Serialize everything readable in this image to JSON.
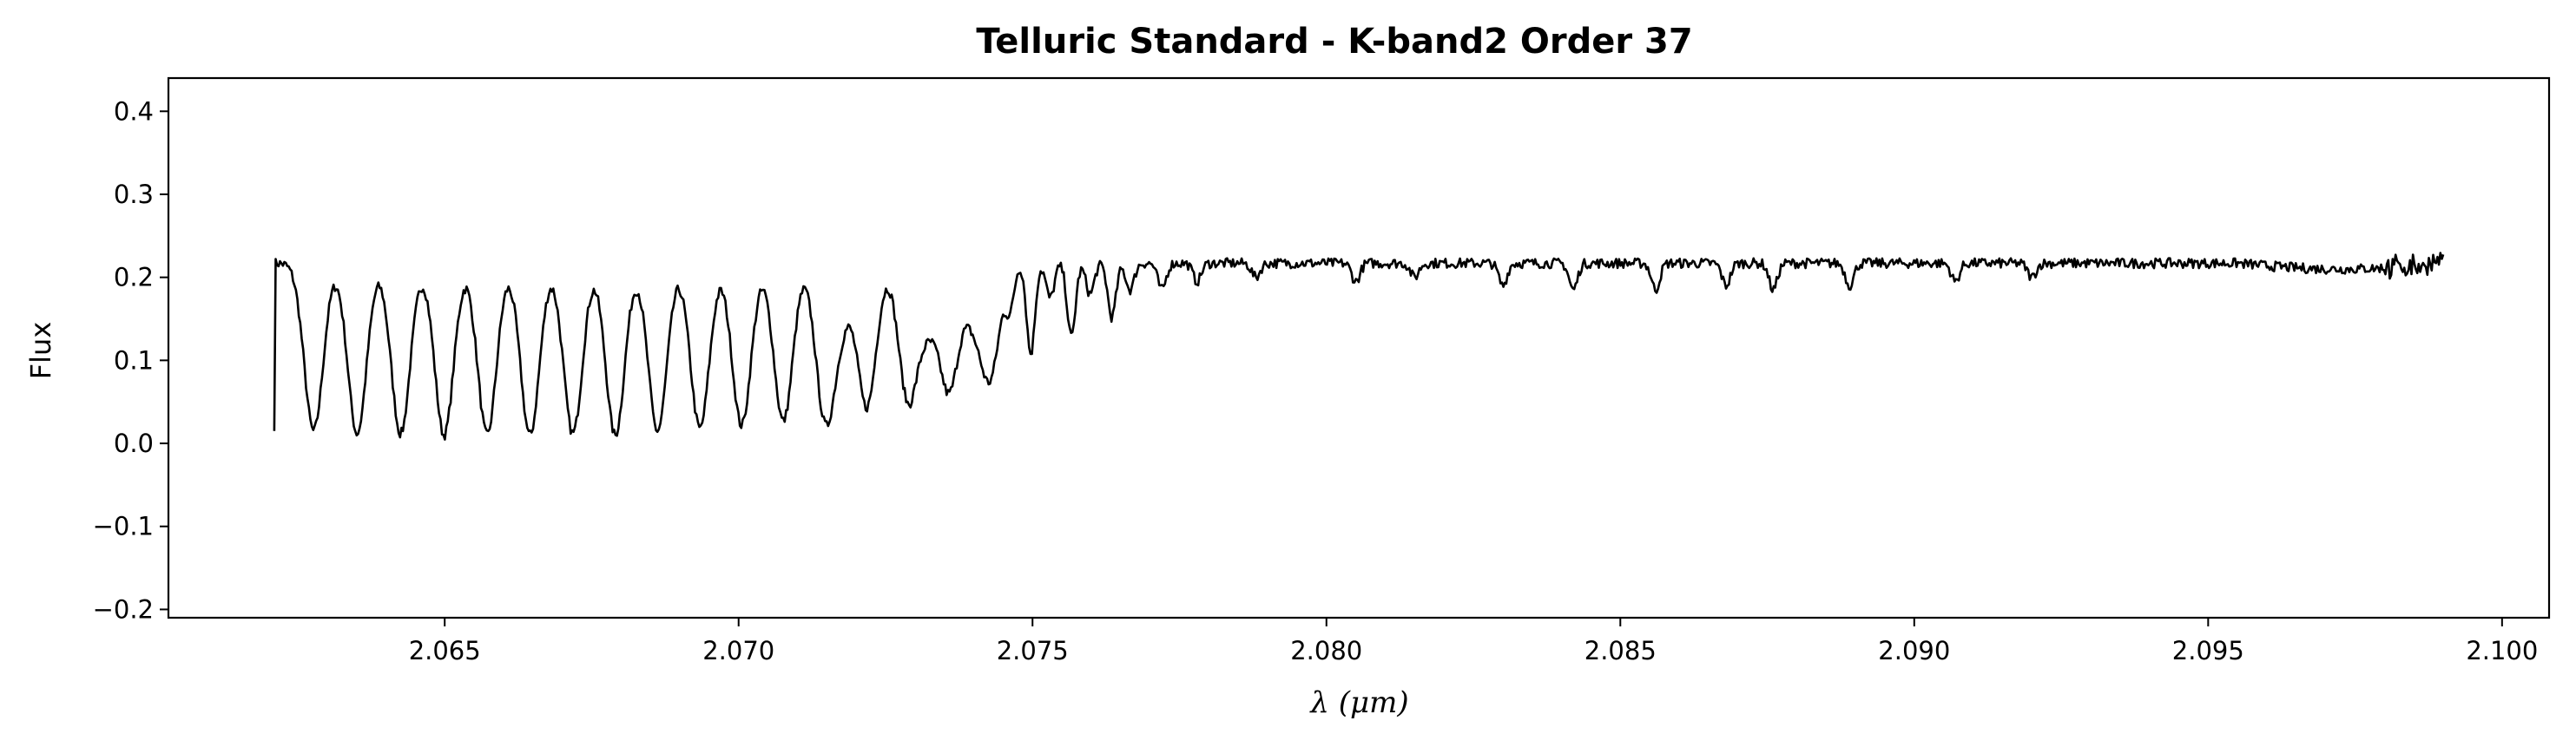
{
  "chart_data": {
    "type": "line",
    "title": "Telluric Standard - K-band2 Order 37",
    "xlabel": "λ (μm)",
    "ylabel": "Flux",
    "xlim": [
      2.0603,
      2.1008
    ],
    "ylim": [
      -0.21,
      0.44
    ],
    "xticks": [
      2.065,
      2.07,
      2.075,
      2.08,
      2.085,
      2.09,
      2.095,
      2.1
    ],
    "xtick_labels": [
      "2.065",
      "2.070",
      "2.075",
      "2.080",
      "2.085",
      "2.090",
      "2.095",
      "2.100"
    ],
    "yticks": [
      -0.2,
      -0.1,
      0.0,
      0.1,
      0.2,
      0.3,
      0.4
    ],
    "ytick_labels": [
      "−0.2",
      "−0.1",
      "0.0",
      "0.1",
      "0.2",
      "0.3",
      "0.4"
    ],
    "grid": false,
    "color": "#000000",
    "series": [
      {
        "x_start": 2.0621,
        "x_end": 2.099,
        "continuum": 0.217,
        "lines": [
          [
            2.06277,
            0.015
          ],
          [
            2.06351,
            0.012
          ],
          [
            2.06425,
            0.012
          ],
          [
            2.06499,
            0.01
          ],
          [
            2.06572,
            0.01
          ],
          [
            2.06645,
            0.01
          ],
          [
            2.06718,
            0.012
          ],
          [
            2.0679,
            0.01
          ],
          [
            2.06862,
            0.015
          ],
          [
            2.06934,
            0.018
          ],
          [
            2.07005,
            0.022
          ],
          [
            2.07076,
            0.027
          ],
          [
            2.07147,
            0.035
          ],
          [
            2.07218,
            0.045
          ],
          [
            2.07288,
            0.055
          ],
          [
            2.07358,
            0.068
          ],
          [
            2.07428,
            0.085
          ],
          [
            2.07497,
            0.108
          ],
          [
            2.07566,
            0.128
          ],
          [
            2.07635,
            0.152
          ],
          [
            2.07175,
            0.16
          ],
          [
            2.07322,
            0.15
          ],
          [
            2.07398,
            0.16
          ],
          [
            2.07462,
            0.17
          ],
          [
            2.0753,
            0.175
          ],
          [
            2.07598,
            0.18
          ],
          [
            2.07666,
            0.185
          ],
          [
            2.0772,
            0.185
          ],
          [
            2.0778,
            0.195
          ],
          [
            2.0788,
            0.2
          ],
          [
            2.0805,
            0.195
          ],
          [
            2.0815,
            0.2
          ],
          [
            2.083,
            0.19
          ],
          [
            2.0842,
            0.185
          ],
          [
            2.0856,
            0.185
          ],
          [
            2.0868,
            0.19
          ],
          [
            2.0876,
            0.185
          ],
          [
            2.0889,
            0.19
          ],
          [
            2.0907,
            0.195
          ],
          [
            2.092,
            0.2
          ]
        ]
      }
    ]
  }
}
